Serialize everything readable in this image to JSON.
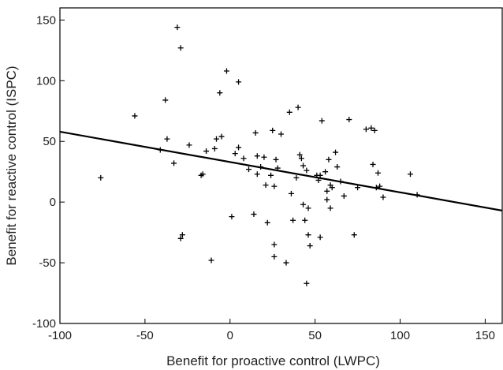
{
  "chart_data": {
    "type": "scatter",
    "title": "",
    "xlabel": "Benefit for proactive control (LWPC)",
    "ylabel": "Benefit for reactive control (ISPC)",
    "xlim": [
      -100,
      160
    ],
    "ylim": [
      -100,
      160
    ],
    "xticks": [
      -100,
      -50,
      0,
      50,
      100,
      150
    ],
    "yticks": [
      -100,
      -50,
      0,
      50,
      100,
      150
    ],
    "grid": false,
    "legend": "none",
    "marker": "plus",
    "marker_color": "#000000",
    "series": [
      {
        "points": [
          [
            -76,
            20
          ],
          [
            -56,
            71
          ],
          [
            -41,
            43
          ],
          [
            -38,
            84
          ],
          [
            -37,
            52
          ],
          [
            -33,
            32
          ],
          [
            -31,
            144
          ],
          [
            -29,
            127
          ],
          [
            -29,
            -30
          ],
          [
            -28,
            -27
          ],
          [
            -24,
            47
          ],
          [
            -17,
            22
          ],
          [
            -16,
            23
          ],
          [
            -14,
            42
          ],
          [
            -11,
            -48
          ],
          [
            -9,
            44
          ],
          [
            -8,
            52
          ],
          [
            -6,
            90
          ],
          [
            -5,
            54
          ],
          [
            -2,
            108
          ],
          [
            1,
            -12
          ],
          [
            3,
            40
          ],
          [
            5,
            99
          ],
          [
            5,
            45
          ],
          [
            8,
            36
          ],
          [
            11,
            27
          ],
          [
            14,
            -10
          ],
          [
            15,
            57
          ],
          [
            16,
            38
          ],
          [
            16,
            23
          ],
          [
            18,
            29
          ],
          [
            20,
            37
          ],
          [
            21,
            14
          ],
          [
            22,
            -17
          ],
          [
            24,
            22
          ],
          [
            25,
            59
          ],
          [
            26,
            13
          ],
          [
            26,
            -35
          ],
          [
            26,
            -45
          ],
          [
            27,
            35
          ],
          [
            28,
            28
          ],
          [
            30,
            56
          ],
          [
            33,
            -50
          ],
          [
            35,
            74
          ],
          [
            36,
            7
          ],
          [
            37,
            -15
          ],
          [
            39,
            20
          ],
          [
            40,
            78
          ],
          [
            41,
            39
          ],
          [
            42,
            36
          ],
          [
            43,
            30
          ],
          [
            43,
            -2
          ],
          [
            44,
            -15
          ],
          [
            45,
            26
          ],
          [
            45,
            -67
          ],
          [
            46,
            -5
          ],
          [
            46,
            -27
          ],
          [
            47,
            -36
          ],
          [
            51,
            22
          ],
          [
            52,
            18
          ],
          [
            53,
            22
          ],
          [
            53,
            -29
          ],
          [
            54,
            67
          ],
          [
            56,
            25
          ],
          [
            57,
            9
          ],
          [
            57,
            2
          ],
          [
            58,
            35
          ],
          [
            59,
            -5
          ],
          [
            59,
            14
          ],
          [
            60,
            12
          ],
          [
            62,
            41
          ],
          [
            63,
            29
          ],
          [
            65,
            17
          ],
          [
            67,
            5
          ],
          [
            70,
            68
          ],
          [
            73,
            -27
          ],
          [
            75,
            12
          ],
          [
            80,
            60
          ],
          [
            83,
            61
          ],
          [
            84,
            31
          ],
          [
            85,
            59
          ],
          [
            86,
            12
          ],
          [
            87,
            24
          ],
          [
            88,
            13
          ],
          [
            90,
            4
          ],
          [
            106,
            23
          ],
          [
            110,
            6
          ]
        ]
      }
    ],
    "regression_line": {
      "x": [
        -100,
        160
      ],
      "y": [
        58,
        -7
      ]
    }
  }
}
